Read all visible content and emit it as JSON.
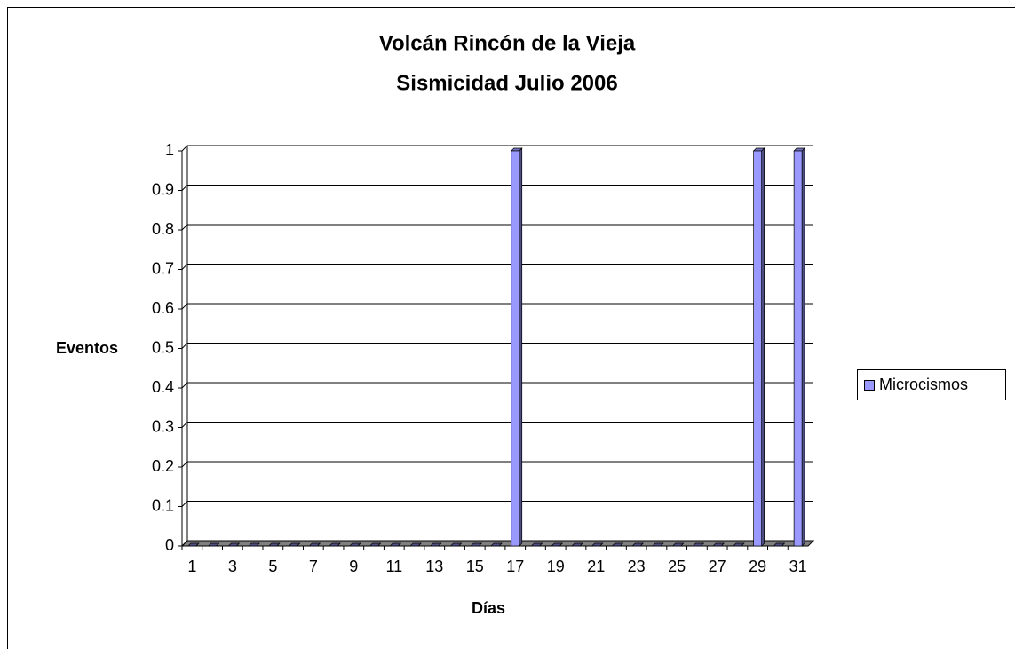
{
  "chart_data": {
    "type": "bar3d",
    "title": "Volcán Rincón de la Vieja",
    "subtitle": "Sismicidad Julio 2006",
    "x_label": "Días",
    "y_label": "Eventos",
    "categories": [
      1,
      null,
      3,
      null,
      5,
      null,
      7,
      null,
      9,
      null,
      11,
      null,
      13,
      null,
      15,
      null,
      17,
      null,
      19,
      null,
      21,
      null,
      23,
      null,
      25,
      null,
      27,
      null,
      29,
      null,
      31
    ],
    "series": [
      {
        "name": "Microcismos",
        "color": "#9999ff",
        "values": [
          0,
          0,
          0,
          0,
          0,
          0,
          0,
          0,
          0,
          0,
          0,
          0,
          0,
          0,
          0,
          0,
          1,
          0,
          0,
          0,
          0,
          0,
          0,
          0,
          0,
          0,
          0,
          0,
          1,
          0,
          1
        ]
      }
    ],
    "ylim": [
      0,
      1
    ],
    "yticks": [
      0,
      0.1,
      0.2,
      0.3,
      0.4,
      0.5,
      0.6,
      0.7,
      0.8,
      0.9,
      1
    ],
    "grid": true,
    "legend": "right"
  }
}
